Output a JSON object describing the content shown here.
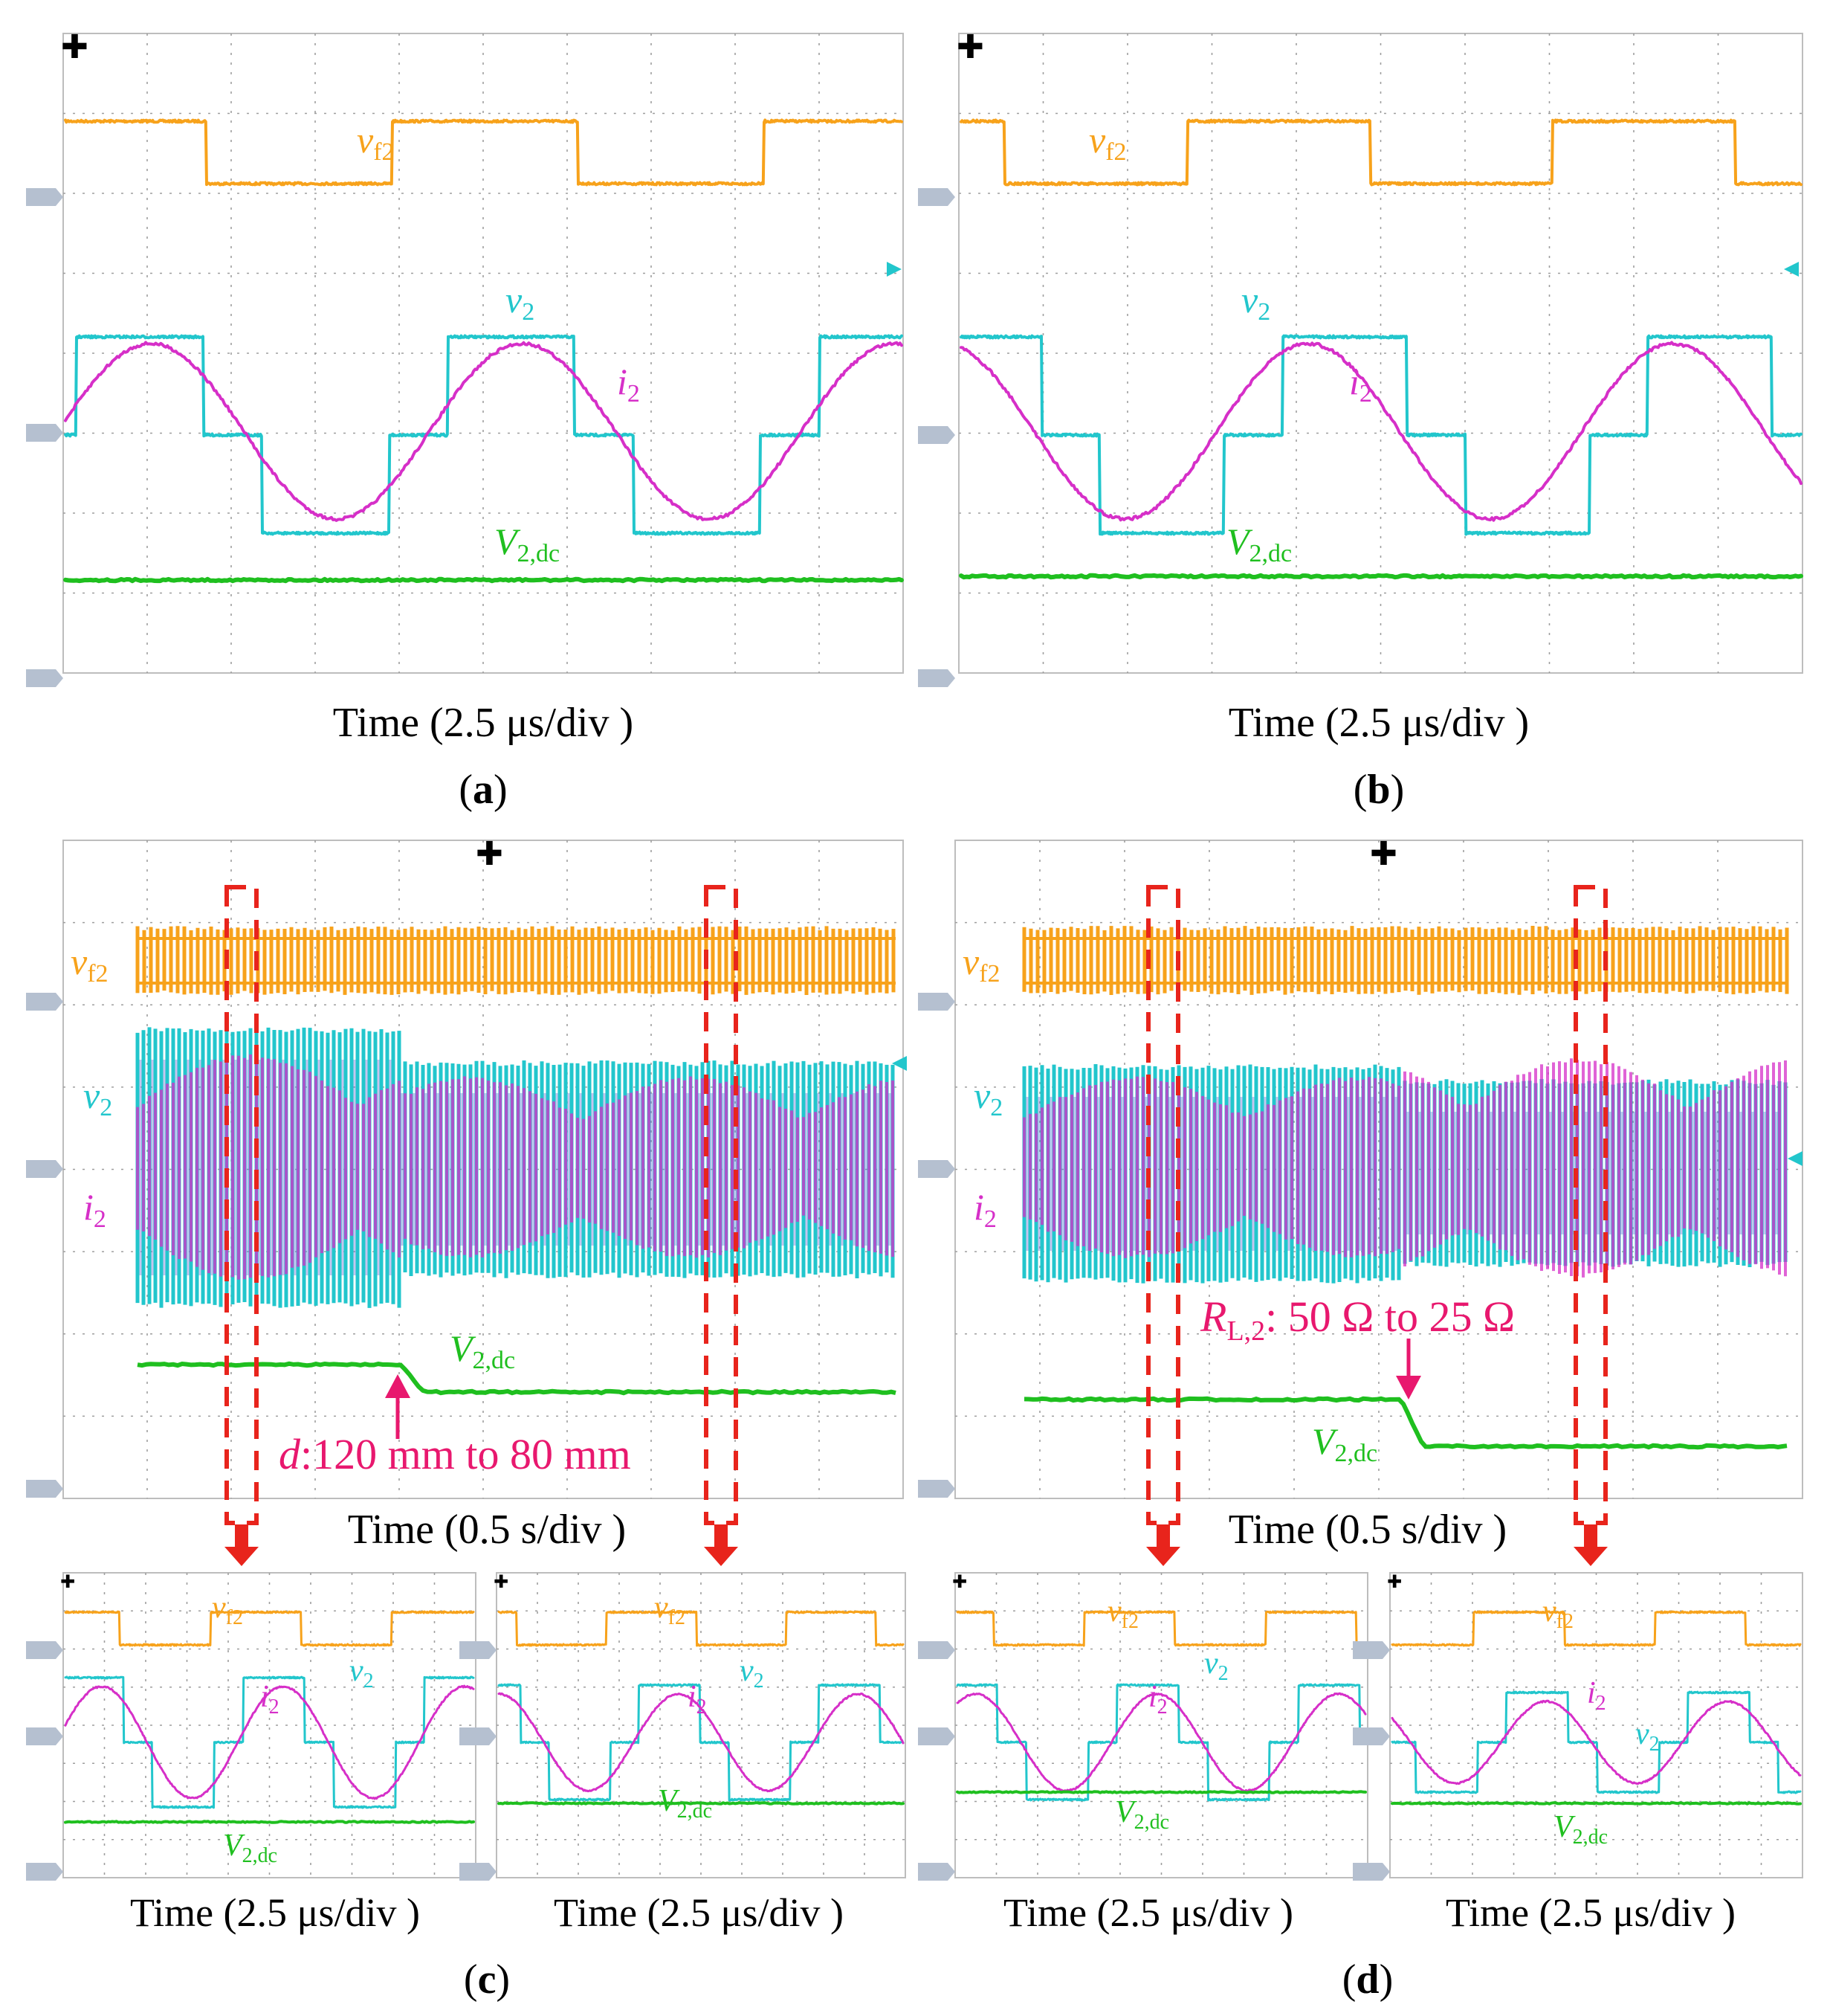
{
  "colors": {
    "vf2": "#f7a21b",
    "v2": "#22c6cc",
    "i2": "#d62fc8",
    "vdc": "#1fbf1f",
    "annotation": "#e8186e",
    "highlight": "#e8241c"
  },
  "labels": {
    "vf2_main": "v",
    "vf2_sub": "f2",
    "v2_main": "v",
    "v2_sub": "2",
    "i2_main": "i",
    "i2_sub": "2",
    "vdc_main": "V",
    "vdc_sub": "2,dc"
  },
  "time_captions": {
    "fast": "Time (2.5 μs/div )",
    "slow": "Time (0.5 s/div )"
  },
  "panel_letters": {
    "a": "a",
    "b": "b",
    "c": "c",
    "d": "d"
  },
  "annotations": {
    "c_event": "120 mm to 80 mm",
    "c_event_var": "d",
    "d_event_var": "R",
    "d_event_var_sub": "L,2",
    "d_event_text": ": 50 Ω to 25 Ω"
  },
  "chart_data": [
    {
      "panel": "a",
      "type": "line",
      "grid": true,
      "x_divisions": 10,
      "y_divisions": 8,
      "series": [
        {
          "name": "vf2",
          "shape": "square",
          "cycles": 2.25,
          "phase": 0.1
        },
        {
          "name": "v2",
          "shape": "quasi-square",
          "cycles": 2.25,
          "phase": 0.1
        },
        {
          "name": "i2",
          "shape": "sine",
          "cycles": 2.25,
          "phase": 0.02
        },
        {
          "name": "V2,dc",
          "shape": "dc"
        }
      ]
    },
    {
      "panel": "b",
      "type": "line",
      "grid": true,
      "x_divisions": 10,
      "y_divisions": 8,
      "series": [
        {
          "name": "vf2",
          "shape": "square",
          "cycles": 2.3,
          "phase": 0.3
        },
        {
          "name": "v2",
          "shape": "quasi-square",
          "cycles": 2.3,
          "phase": 0.3
        },
        {
          "name": "i2",
          "shape": "sine",
          "cycles": 2.3,
          "phase": 0.25
        },
        {
          "name": "V2,dc",
          "shape": "dc"
        }
      ]
    },
    {
      "panel": "c",
      "type": "line",
      "grid": true,
      "x_divisions": 10,
      "y_divisions": 8,
      "event": "d: 120 mm to 80 mm",
      "zoom_windows": 2,
      "series": [
        {
          "name": "vf2"
        },
        {
          "name": "v2"
        },
        {
          "name": "i2"
        },
        {
          "name": "V2,dc",
          "shape": "step-down"
        }
      ]
    },
    {
      "panel": "d",
      "type": "line",
      "grid": true,
      "x_divisions": 10,
      "y_divisions": 8,
      "event": "RL,2: 50 Ω to 25 Ω",
      "zoom_windows": 2,
      "series": [
        {
          "name": "vf2"
        },
        {
          "name": "v2"
        },
        {
          "name": "i2"
        },
        {
          "name": "V2,dc",
          "shape": "step-down"
        }
      ]
    }
  ]
}
